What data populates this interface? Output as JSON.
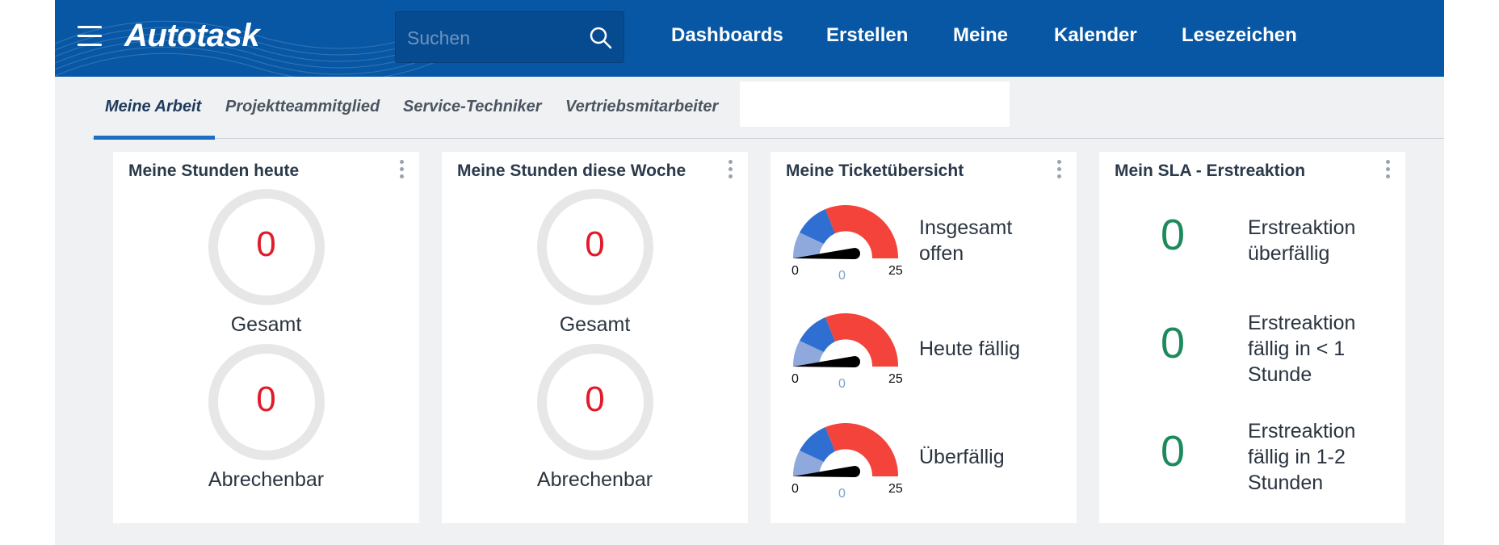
{
  "header": {
    "logo": "Autotask",
    "search_placeholder": "Suchen",
    "nav": [
      "Dashboards",
      "Erstellen",
      "Meine",
      "Kalender",
      "Lesezeichen"
    ]
  },
  "tabs": [
    "Meine Arbeit",
    "Projektteammitglied",
    "Service-Techniker",
    "Vertriebsmitarbeiter"
  ],
  "active_tab": "Meine Arbeit",
  "widgets": {
    "hours_today": {
      "title": "Meine Stunden heute",
      "total_value": "0",
      "total_label": "Gesamt",
      "billable_value": "0",
      "billable_label": "Abrechenbar"
    },
    "hours_week": {
      "title": "Meine Stunden diese Woche",
      "total_value": "0",
      "total_label": "Gesamt",
      "billable_value": "0",
      "billable_label": "Abrechenbar"
    },
    "tickets": {
      "title": "Meine Ticketübersicht",
      "gauges": [
        {
          "label": "Insgesamt offen",
          "min": "0",
          "max": "25",
          "value": "0"
        },
        {
          "label": "Heute fällig",
          "min": "0",
          "max": "25",
          "value": "0"
        },
        {
          "label": "Überfällig",
          "min": "0",
          "max": "25",
          "value": "0"
        }
      ]
    },
    "sla": {
      "title": "Mein SLA - Erstreaktion",
      "items": [
        {
          "value": "0",
          "label": "Erstreaktion überfällig"
        },
        {
          "value": "0",
          "label": "Erstreaktion fällig in < 1 Stunde"
        },
        {
          "value": "0",
          "label": "Erstreaktion fällig in 1-2 Stunden"
        }
      ]
    }
  },
  "colors": {
    "header_bg": "#0857a5",
    "ring_value": "#e01b2c",
    "sla_value": "#1d8a5c",
    "gauge_low": "#8fa9dc",
    "gauge_mid": "#2f6fd1",
    "gauge_high": "#f4433a",
    "tab_underline": "#1d6fc4"
  },
  "icons": {
    "menu": "hamburger-icon",
    "search": "search-icon",
    "widget_menu": "kebab-icon"
  }
}
